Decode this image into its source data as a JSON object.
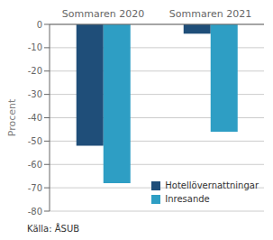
{
  "chart_data": {
    "type": "bar",
    "categories": [
      "Sommaren 2020",
      "Sommaren 2021"
    ],
    "series": [
      {
        "name": "Hotellövernattningar",
        "color": "#1F4E79",
        "values": [
          -52,
          -4
        ]
      },
      {
        "name": "Inresande",
        "color": "#2E9EC4",
        "values": [
          -68,
          -46
        ]
      }
    ],
    "ylabel": "Procent",
    "ylim": [
      -80,
      0
    ],
    "yticks": [
      0,
      -10,
      -20,
      -30,
      -40,
      -50,
      -60,
      -70,
      -80
    ],
    "grid": true,
    "legend": "lower right",
    "annotations": [
      "Källa: ÅSUB"
    ]
  }
}
